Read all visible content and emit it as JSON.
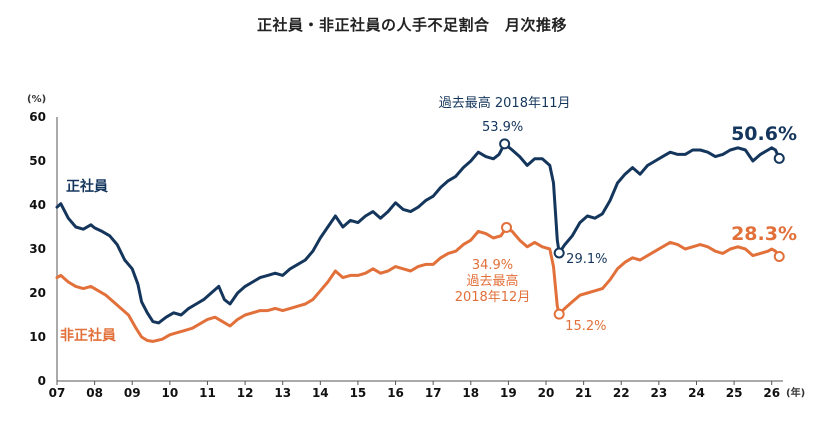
{
  "chart_data": {
    "type": "line",
    "title": "正社員・非正社員の人手不足割合　月次推移",
    "yunit": "(%)",
    "xunit": "(年)",
    "ylim": [
      0,
      60
    ],
    "yticks": [
      0,
      10,
      20,
      30,
      40,
      50,
      60
    ],
    "xlim": [
      2007,
      2026.3
    ],
    "xticks": [
      {
        "label": "07",
        "v": 2007
      },
      {
        "label": "08",
        "v": 2008
      },
      {
        "label": "09",
        "v": 2009
      },
      {
        "label": "10",
        "v": 2010
      },
      {
        "label": "11",
        "v": 2011
      },
      {
        "label": "12",
        "v": 2012
      },
      {
        "label": "13",
        "v": 2013
      },
      {
        "label": "14",
        "v": 2014
      },
      {
        "label": "15",
        "v": 2015
      },
      {
        "label": "16",
        "v": 2016
      },
      {
        "label": "17",
        "v": 2017
      },
      {
        "label": "18",
        "v": 2018
      },
      {
        "label": "19",
        "v": 2019
      },
      {
        "label": "20",
        "v": 2020
      },
      {
        "label": "21",
        "v": 2021
      },
      {
        "label": "22",
        "v": 2022
      },
      {
        "label": "23",
        "v": 2023
      },
      {
        "label": "24",
        "v": 2024
      },
      {
        "label": "25",
        "v": 2025
      },
      {
        "label": "26",
        "v": 2026
      }
    ],
    "grid": false,
    "series": [
      {
        "name": "正社員",
        "color": "#15365c",
        "points": [
          [
            2007.0,
            39.5
          ],
          [
            2007.1,
            40.3
          ],
          [
            2007.3,
            37
          ],
          [
            2007.5,
            35
          ],
          [
            2007.7,
            34.5
          ],
          [
            2007.9,
            35.5
          ],
          [
            2008.0,
            34.8
          ],
          [
            2008.2,
            34
          ],
          [
            2008.4,
            33
          ],
          [
            2008.6,
            31
          ],
          [
            2008.8,
            27.5
          ],
          [
            2009.0,
            25.5
          ],
          [
            2009.15,
            22
          ],
          [
            2009.25,
            18
          ],
          [
            2009.4,
            15.5
          ],
          [
            2009.55,
            13.5
          ],
          [
            2009.7,
            13.2
          ],
          [
            2009.9,
            14.5
          ],
          [
            2010.1,
            15.5
          ],
          [
            2010.3,
            15
          ],
          [
            2010.5,
            16.5
          ],
          [
            2010.7,
            17.5
          ],
          [
            2010.9,
            18.5
          ],
          [
            2011.1,
            20
          ],
          [
            2011.3,
            21.5
          ],
          [
            2011.45,
            18.5
          ],
          [
            2011.6,
            17.5
          ],
          [
            2011.8,
            20
          ],
          [
            2012.0,
            21.5
          ],
          [
            2012.2,
            22.5
          ],
          [
            2012.4,
            23.5
          ],
          [
            2012.6,
            24
          ],
          [
            2012.8,
            24.5
          ],
          [
            2013.0,
            24
          ],
          [
            2013.2,
            25.5
          ],
          [
            2013.4,
            26.5
          ],
          [
            2013.6,
            27.5
          ],
          [
            2013.8,
            29.5
          ],
          [
            2014.0,
            32.5
          ],
          [
            2014.2,
            35
          ],
          [
            2014.4,
            37.5
          ],
          [
            2014.6,
            35
          ],
          [
            2014.8,
            36.5
          ],
          [
            2015.0,
            36
          ],
          [
            2015.2,
            37.5
          ],
          [
            2015.4,
            38.5
          ],
          [
            2015.6,
            37
          ],
          [
            2015.8,
            38.5
          ],
          [
            2016.0,
            40.5
          ],
          [
            2016.2,
            39
          ],
          [
            2016.4,
            38.5
          ],
          [
            2016.6,
            39.5
          ],
          [
            2016.8,
            41
          ],
          [
            2017.0,
            42
          ],
          [
            2017.2,
            44
          ],
          [
            2017.4,
            45.5
          ],
          [
            2017.6,
            46.5
          ],
          [
            2017.8,
            48.5
          ],
          [
            2018.0,
            50
          ],
          [
            2018.2,
            52
          ],
          [
            2018.4,
            51
          ],
          [
            2018.6,
            50.5
          ],
          [
            2018.75,
            51.5
          ],
          [
            2018.9,
            53.9
          ],
          [
            2019.1,
            52.5
          ],
          [
            2019.3,
            51
          ],
          [
            2019.5,
            49
          ],
          [
            2019.7,
            50.5
          ],
          [
            2019.9,
            50.5
          ],
          [
            2020.1,
            49
          ],
          [
            2020.2,
            45
          ],
          [
            2020.3,
            32
          ],
          [
            2020.35,
            29.1
          ],
          [
            2020.5,
            31
          ],
          [
            2020.7,
            33
          ],
          [
            2020.9,
            36
          ],
          [
            2021.1,
            37.5
          ],
          [
            2021.3,
            37
          ],
          [
            2021.5,
            38
          ],
          [
            2021.7,
            41
          ],
          [
            2021.9,
            45
          ],
          [
            2022.1,
            47
          ],
          [
            2022.3,
            48.5
          ],
          [
            2022.5,
            47
          ],
          [
            2022.7,
            49
          ],
          [
            2022.9,
            50
          ],
          [
            2023.1,
            51
          ],
          [
            2023.3,
            52
          ],
          [
            2023.5,
            51.5
          ],
          [
            2023.7,
            51.5
          ],
          [
            2023.9,
            52.5
          ],
          [
            2024.1,
            52.5
          ],
          [
            2024.3,
            52
          ],
          [
            2024.5,
            51
          ],
          [
            2024.7,
            51.5
          ],
          [
            2024.9,
            52.5
          ],
          [
            2025.1,
            53
          ],
          [
            2025.3,
            52.5
          ],
          [
            2025.5,
            50
          ],
          [
            2025.7,
            51.5
          ],
          [
            2025.9,
            52.5
          ],
          [
            2026.0,
            53
          ],
          [
            2026.1,
            52.5
          ],
          [
            2026.2,
            50.6
          ]
        ]
      },
      {
        "name": "非正社員",
        "color": "#e2703a",
        "points": [
          [
            2007.0,
            23.5
          ],
          [
            2007.1,
            24
          ],
          [
            2007.3,
            22.5
          ],
          [
            2007.5,
            21.5
          ],
          [
            2007.7,
            21
          ],
          [
            2007.9,
            21.5
          ],
          [
            2008.1,
            20.5
          ],
          [
            2008.3,
            19.5
          ],
          [
            2008.5,
            18
          ],
          [
            2008.7,
            16.5
          ],
          [
            2008.9,
            15
          ],
          [
            2009.1,
            12
          ],
          [
            2009.25,
            10
          ],
          [
            2009.4,
            9.2
          ],
          [
            2009.55,
            9
          ],
          [
            2009.8,
            9.5
          ],
          [
            2010.0,
            10.5
          ],
          [
            2010.2,
            11
          ],
          [
            2010.4,
            11.5
          ],
          [
            2010.6,
            12
          ],
          [
            2010.8,
            13
          ],
          [
            2011.0,
            14
          ],
          [
            2011.2,
            14.5
          ],
          [
            2011.4,
            13.5
          ],
          [
            2011.6,
            12.5
          ],
          [
            2011.8,
            14
          ],
          [
            2012.0,
            15
          ],
          [
            2012.2,
            15.5
          ],
          [
            2012.4,
            16
          ],
          [
            2012.6,
            16
          ],
          [
            2012.8,
            16.5
          ],
          [
            2013.0,
            16
          ],
          [
            2013.2,
            16.5
          ],
          [
            2013.4,
            17
          ],
          [
            2013.6,
            17.5
          ],
          [
            2013.8,
            18.5
          ],
          [
            2014.0,
            20.5
          ],
          [
            2014.2,
            22.5
          ],
          [
            2014.4,
            25
          ],
          [
            2014.6,
            23.5
          ],
          [
            2014.8,
            24
          ],
          [
            2015.0,
            24
          ],
          [
            2015.2,
            24.5
          ],
          [
            2015.4,
            25.5
          ],
          [
            2015.6,
            24.5
          ],
          [
            2015.8,
            25
          ],
          [
            2016.0,
            26
          ],
          [
            2016.2,
            25.5
          ],
          [
            2016.4,
            25
          ],
          [
            2016.6,
            26
          ],
          [
            2016.8,
            26.5
          ],
          [
            2017.0,
            26.5
          ],
          [
            2017.2,
            28
          ],
          [
            2017.4,
            29
          ],
          [
            2017.6,
            29.5
          ],
          [
            2017.8,
            31
          ],
          [
            2018.0,
            32
          ],
          [
            2018.2,
            34
          ],
          [
            2018.4,
            33.5
          ],
          [
            2018.6,
            32.5
          ],
          [
            2018.8,
            33
          ],
          [
            2018.95,
            34.9
          ],
          [
            2019.1,
            34
          ],
          [
            2019.3,
            32
          ],
          [
            2019.5,
            30.5
          ],
          [
            2019.7,
            31.5
          ],
          [
            2019.9,
            30.5
          ],
          [
            2020.1,
            30
          ],
          [
            2020.2,
            26
          ],
          [
            2020.3,
            17
          ],
          [
            2020.35,
            15.2
          ],
          [
            2020.5,
            16.5
          ],
          [
            2020.7,
            18
          ],
          [
            2020.9,
            19.5
          ],
          [
            2021.1,
            20
          ],
          [
            2021.3,
            20.5
          ],
          [
            2021.5,
            21
          ],
          [
            2021.7,
            23
          ],
          [
            2021.9,
            25.5
          ],
          [
            2022.1,
            27
          ],
          [
            2022.3,
            28
          ],
          [
            2022.5,
            27.5
          ],
          [
            2022.7,
            28.5
          ],
          [
            2022.9,
            29.5
          ],
          [
            2023.1,
            30.5
          ],
          [
            2023.3,
            31.5
          ],
          [
            2023.5,
            31
          ],
          [
            2023.7,
            30
          ],
          [
            2023.9,
            30.5
          ],
          [
            2024.1,
            31
          ],
          [
            2024.3,
            30.5
          ],
          [
            2024.5,
            29.5
          ],
          [
            2024.7,
            29
          ],
          [
            2024.9,
            30
          ],
          [
            2025.1,
            30.5
          ],
          [
            2025.3,
            30
          ],
          [
            2025.5,
            28.5
          ],
          [
            2025.7,
            29
          ],
          [
            2025.9,
            29.5
          ],
          [
            2026.0,
            30
          ],
          [
            2026.1,
            29.5
          ],
          [
            2026.2,
            28.3
          ]
        ]
      }
    ],
    "annotations": [
      {
        "series": 0,
        "x": 2018.9,
        "y": 53.9,
        "label": "過去最高 2018年11月",
        "value": "53.9%"
      },
      {
        "series": 1,
        "x": 2018.95,
        "y": 34.9,
        "value": "34.9%",
        "label_line1": "過去最高",
        "label_line2": "2018年12月"
      },
      {
        "series": 0,
        "x": 2020.35,
        "y": 29.1,
        "value": "29.1%"
      },
      {
        "series": 1,
        "x": 2020.35,
        "y": 15.2,
        "value": "15.2%"
      },
      {
        "series": 0,
        "x": 2026.2,
        "y": 50.6,
        "value": "50.6%"
      },
      {
        "series": 1,
        "x": 2026.2,
        "y": 28.3,
        "value": "28.3%"
      }
    ]
  }
}
